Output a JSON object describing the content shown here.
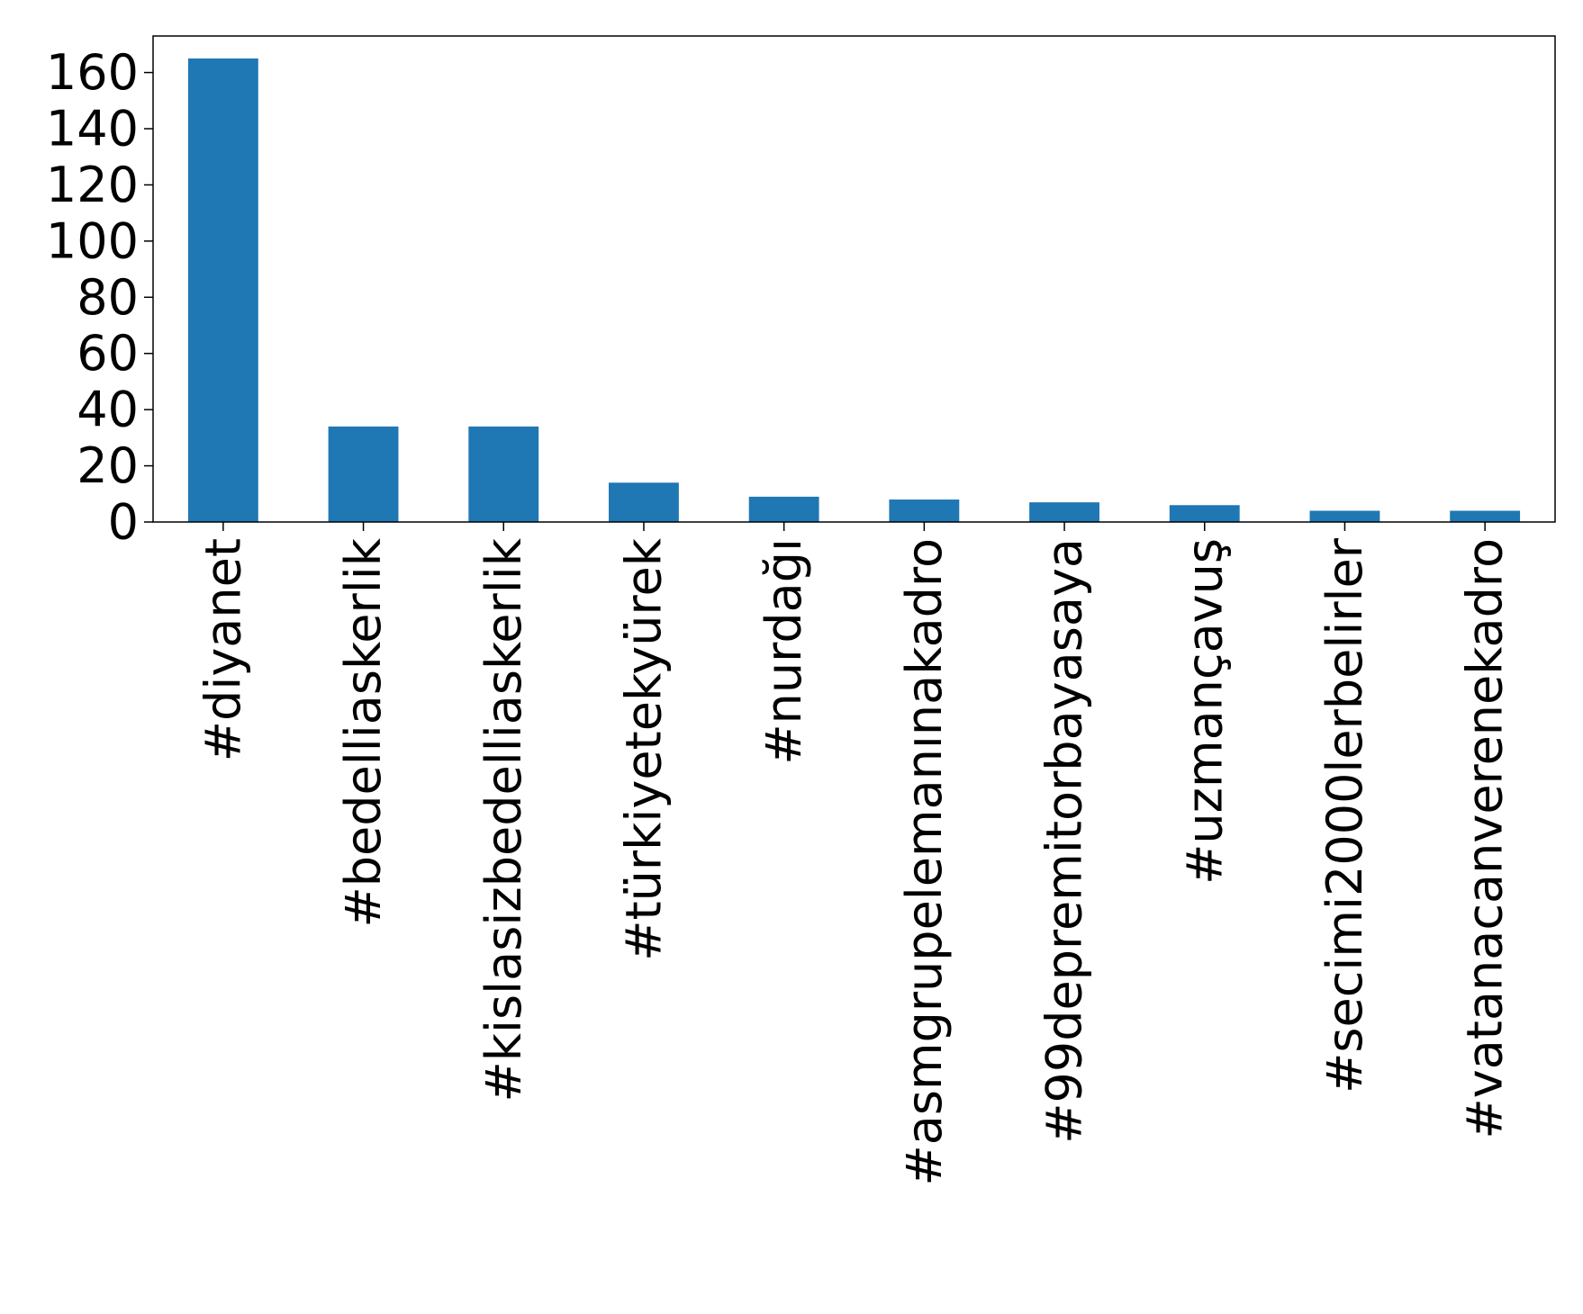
{
  "chart_data": {
    "type": "bar",
    "categories": [
      "#diyanet",
      "#bedelliaskerlik",
      "#kislasizbedelliaskerlik",
      "#türkiyetekyürek",
      "#nurdağı",
      "#asmgrupelemanınakadro",
      "#99depremitorbayasaya",
      "#uzmançavuş",
      "#secimi2000lerbelirler",
      "#vatanacanverenekadro"
    ],
    "values": [
      165,
      34,
      34,
      14,
      9,
      8,
      7,
      6,
      4,
      4
    ],
    "yticks": [
      0,
      20,
      40,
      60,
      80,
      100,
      120,
      140,
      160
    ],
    "ylim": [
      0,
      173
    ],
    "title": "",
    "xlabel": "",
    "ylabel": "",
    "grid": false,
    "bar_color": "#1f77b4"
  }
}
